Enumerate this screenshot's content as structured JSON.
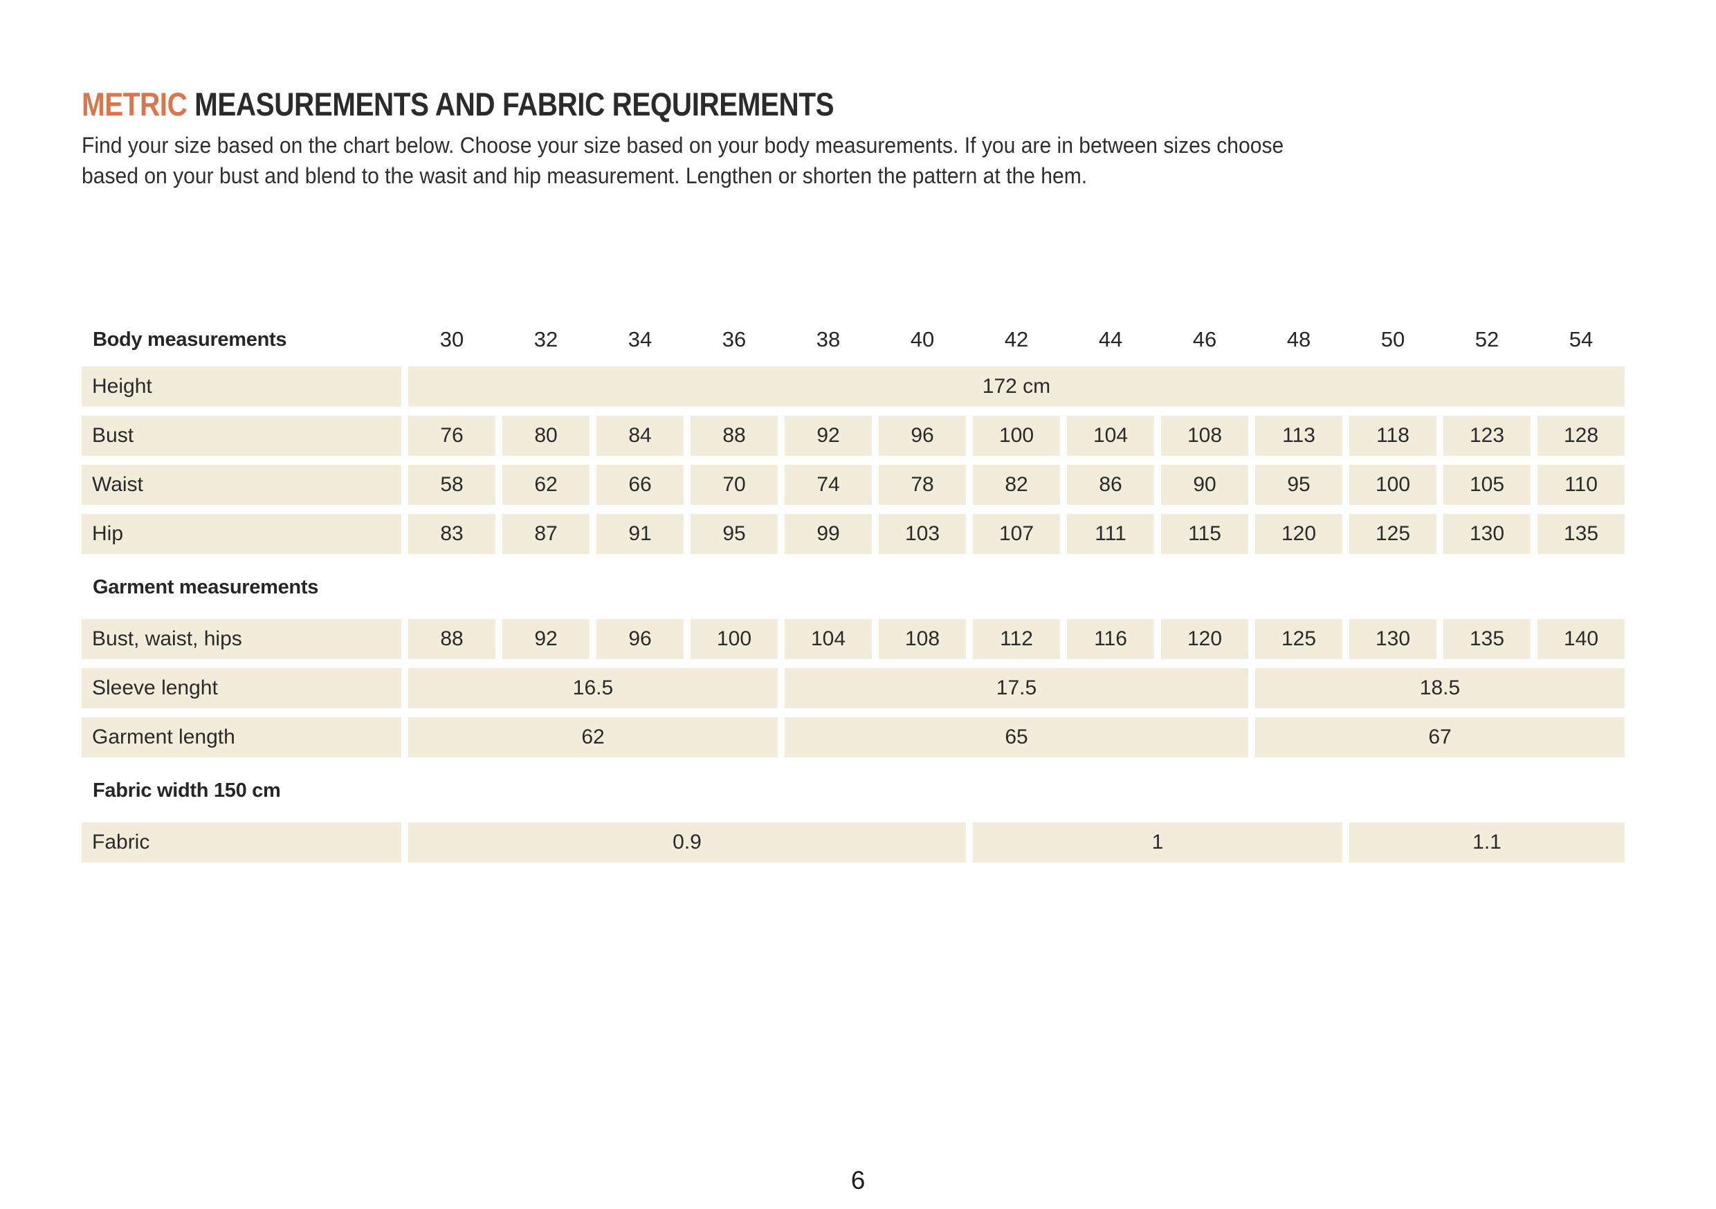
{
  "title": {
    "highlight": "METRIC",
    "rest": " MEASUREMENTS AND FABRIC REQUIREMENTS"
  },
  "intro_lines": [
    "Find your size based on the chart below. Choose your size based on your body measurements. If you are in between sizes choose",
    "based on your bust and blend to the wasit and hip measurement. Lengthen or shorten the pattern at the hem."
  ],
  "colors": {
    "accent": "#d9764c",
    "cell_bg": "#f2ecdb",
    "text": "#262626"
  },
  "table": {
    "header_label": "Body measurements",
    "sizes": [
      "30",
      "32",
      "34",
      "36",
      "38",
      "40",
      "42",
      "44",
      "46",
      "48",
      "50",
      "52",
      "54"
    ],
    "rows": [
      {
        "label": "Height",
        "merged": [
          {
            "value": "172 cm",
            "span": 13
          }
        ]
      },
      {
        "label": "Bust",
        "values": [
          "76",
          "80",
          "84",
          "88",
          "92",
          "96",
          "100",
          "104",
          "108",
          "113",
          "118",
          "123",
          "128"
        ]
      },
      {
        "label": "Waist",
        "values": [
          "58",
          "62",
          "66",
          "70",
          "74",
          "78",
          "82",
          "86",
          "90",
          "95",
          "100",
          "105",
          "110"
        ]
      },
      {
        "label": "Hip",
        "values": [
          "83",
          "87",
          "91",
          "95",
          "99",
          "103",
          "107",
          "111",
          "115",
          "120",
          "125",
          "130",
          "135"
        ]
      },
      {
        "section": "Garment measurements"
      },
      {
        "label": "Bust, waist, hips",
        "values": [
          "88",
          "92",
          "96",
          "100",
          "104",
          "108",
          "112",
          "116",
          "120",
          "125",
          "130",
          "135",
          "140"
        ]
      },
      {
        "label": "Sleeve lenght",
        "merged": [
          {
            "value": "16.5",
            "span": 4
          },
          {
            "value": "17.5",
            "span": 5
          },
          {
            "value": "18.5",
            "span": 4
          }
        ]
      },
      {
        "label": "Garment length",
        "merged": [
          {
            "value": "62",
            "span": 4
          },
          {
            "value": "65",
            "span": 5
          },
          {
            "value": "67",
            "span": 4
          }
        ]
      },
      {
        "section": "Fabric width 150 cm"
      },
      {
        "label": "Fabric",
        "merged": [
          {
            "value": "0.9",
            "span": 6
          },
          {
            "value": "1",
            "span": 4
          },
          {
            "value": "1.1",
            "span": 3
          }
        ]
      }
    ]
  },
  "page_number": "6"
}
